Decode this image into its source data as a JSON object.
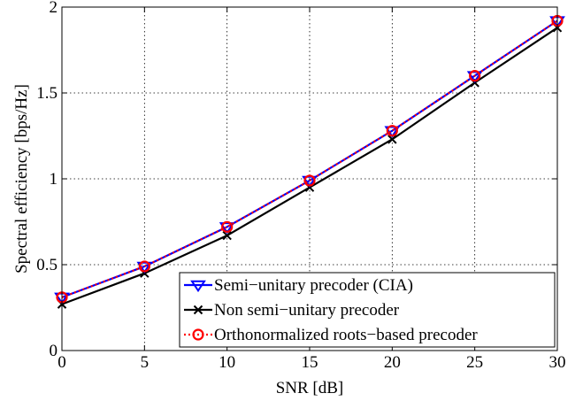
{
  "chart_data": {
    "type": "line",
    "xlabel": "SNR [dB]",
    "ylabel": "Spectral efficiency [bps/Hz]",
    "xlim": [
      0,
      30
    ],
    "ylim": [
      0,
      2
    ],
    "xticks": [
      0,
      5,
      10,
      15,
      20,
      25,
      30
    ],
    "yticks": [
      0,
      0.5,
      1,
      1.5,
      2
    ],
    "ytick_labels": [
      "0",
      "0.5",
      "1",
      "1.5",
      "2"
    ],
    "grid": true,
    "legend_position": "bottom-right",
    "x": [
      0,
      5,
      10,
      15,
      20,
      25,
      30
    ],
    "series": [
      {
        "name": "Semi−unitary precoder (CIA)",
        "values": [
          0.31,
          0.49,
          0.72,
          0.99,
          1.28,
          1.6,
          1.92
        ],
        "color": "#0000ff",
        "line_style": "solid",
        "marker": "triangle-down"
      },
      {
        "name": "Non semi−unitary precoder",
        "values": [
          0.27,
          0.45,
          0.67,
          0.95,
          1.23,
          1.56,
          1.88
        ],
        "color": "#000000",
        "line_style": "solid",
        "marker": "x"
      },
      {
        "name": "Orthonormalized roots−based precoder",
        "values": [
          0.31,
          0.49,
          0.72,
          0.99,
          1.28,
          1.6,
          1.92
        ],
        "color": "#ff0000",
        "line_style": "dotted",
        "marker": "circle"
      }
    ]
  }
}
